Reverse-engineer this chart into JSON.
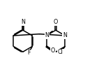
{
  "bg_color": "#ffffff",
  "line_color": "#000000",
  "line_width": 1.1,
  "font_size": 5.8,
  "fig_width": 1.22,
  "fig_height": 1.06,
  "dpi": 100,
  "xlim": [
    0,
    10.5
  ],
  "ylim": [
    1.5,
    8.5
  ]
}
